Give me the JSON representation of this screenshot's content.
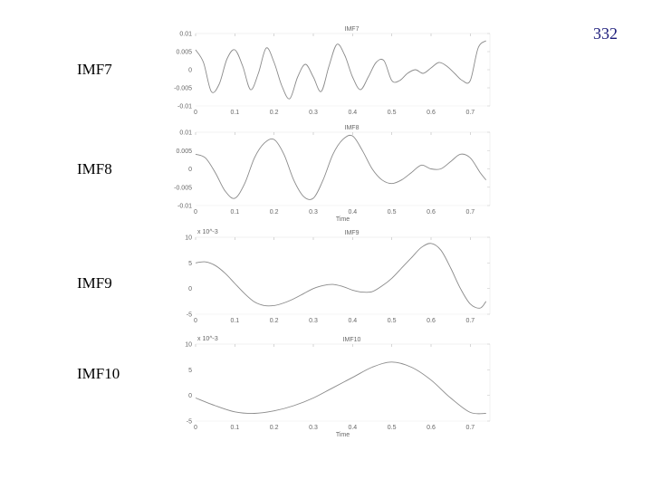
{
  "page_number": "332",
  "labels": [
    "IMF7",
    "IMF8",
    "IMF9",
    "IMF10"
  ],
  "chart_data": [
    {
      "type": "line",
      "title": "IMF7",
      "xlabel": "",
      "ylabel": "",
      "xlim": [
        0,
        0.75
      ],
      "ylim": [
        -0.01,
        0.01
      ],
      "xticks": [
        "0",
        "0.1",
        "0.2",
        "0.3",
        "0.4",
        "0.5",
        "0.6",
        "0.7"
      ],
      "yticks": [
        {
          "v": 0.01,
          "t": "0.01"
        },
        {
          "v": 0.005,
          "t": "0.005"
        },
        {
          "v": 0,
          "t": "0"
        },
        {
          "v": -0.005,
          "t": "-0.005"
        },
        {
          "v": -0.01,
          "t": "-0.01"
        }
      ],
      "series": [
        {
          "x": [
            0.0,
            0.02,
            0.04,
            0.06,
            0.08,
            0.1,
            0.12,
            0.14,
            0.16,
            0.18,
            0.2,
            0.22,
            0.24,
            0.26,
            0.28,
            0.3,
            0.32,
            0.34,
            0.36,
            0.38,
            0.4,
            0.42,
            0.44,
            0.46,
            0.48,
            0.5,
            0.52,
            0.54,
            0.56,
            0.58,
            0.6,
            0.62,
            0.64,
            0.66,
            0.68,
            0.7,
            0.72,
            0.74
          ],
          "y": [
            0.0055,
            0.002,
            -0.006,
            -0.004,
            0.003,
            0.0055,
            0.001,
            -0.0055,
            -0.001,
            0.006,
            0.002,
            -0.0045,
            -0.008,
            -0.002,
            0.0015,
            -0.002,
            -0.006,
            0.001,
            0.007,
            0.004,
            -0.002,
            -0.0055,
            -0.002,
            0.002,
            0.0025,
            -0.003,
            -0.003,
            -0.001,
            0.0,
            -0.001,
            0.0005,
            0.002,
            0.001,
            -0.001,
            -0.003,
            -0.003,
            0.006,
            0.008
          ]
        }
      ]
    },
    {
      "type": "line",
      "title": "IMF8",
      "xlabel": "Time",
      "ylabel": "",
      "xlim": [
        0,
        0.75
      ],
      "ylim": [
        -0.01,
        0.01
      ],
      "xticks": [
        "0",
        "0.1",
        "0.2",
        "0.3",
        "0.4",
        "0.5",
        "0.6",
        "0.7"
      ],
      "yticks": [
        {
          "v": 0.01,
          "t": "0.01"
        },
        {
          "v": 0.005,
          "t": "0.005"
        },
        {
          "v": 0,
          "t": "0"
        },
        {
          "v": -0.005,
          "t": "-0.005"
        },
        {
          "v": -0.01,
          "t": "-0.01"
        }
      ],
      "series": [
        {
          "x": [
            0.0,
            0.025,
            0.05,
            0.075,
            0.1,
            0.125,
            0.15,
            0.175,
            0.2,
            0.225,
            0.25,
            0.275,
            0.3,
            0.325,
            0.35,
            0.375,
            0.4,
            0.425,
            0.45,
            0.475,
            0.5,
            0.525,
            0.55,
            0.575,
            0.6,
            0.625,
            0.65,
            0.675,
            0.7,
            0.725,
            0.74
          ],
          "y": [
            0.004,
            0.003,
            -0.001,
            -0.006,
            -0.008,
            -0.004,
            0.003,
            0.007,
            0.008,
            0.004,
            -0.003,
            -0.0075,
            -0.008,
            -0.003,
            0.004,
            0.008,
            0.009,
            0.005,
            0.0,
            -0.003,
            -0.004,
            -0.003,
            -0.001,
            0.001,
            0.0,
            0.0,
            0.002,
            0.004,
            0.003,
            -0.001,
            -0.003
          ]
        }
      ]
    },
    {
      "type": "line",
      "title": "IMF9",
      "xlabel": "",
      "ylabel": "",
      "multiplier": "x 10^-3",
      "xlim": [
        0,
        0.75
      ],
      "ylim": [
        -5,
        10
      ],
      "xticks": [
        "0",
        "0.1",
        "0.2",
        "0.3",
        "0.4",
        "0.5",
        "0.6",
        "0.7"
      ],
      "yticks": [
        {
          "v": 10,
          "t": "10"
        },
        {
          "v": 5,
          "t": "5"
        },
        {
          "v": 0,
          "t": "0"
        },
        {
          "v": -5,
          "t": "-5"
        }
      ],
      "series": [
        {
          "x": [
            0.0,
            0.025,
            0.05,
            0.075,
            0.1,
            0.125,
            0.15,
            0.175,
            0.2,
            0.225,
            0.25,
            0.275,
            0.3,
            0.325,
            0.35,
            0.375,
            0.4,
            0.425,
            0.45,
            0.475,
            0.5,
            0.525,
            0.55,
            0.575,
            0.6,
            0.625,
            0.65,
            0.675,
            0.7,
            0.725,
            0.74
          ],
          "y": [
            5,
            5.2,
            4.5,
            3,
            1,
            -1,
            -2.6,
            -3.3,
            -3.3,
            -2.8,
            -2,
            -1,
            0,
            0.6,
            0.8,
            0.4,
            -0.3,
            -0.7,
            -0.6,
            0.5,
            2,
            4,
            6,
            8,
            8.8,
            7.5,
            4,
            0,
            -3,
            -3.8,
            -2.5
          ]
        }
      ]
    },
    {
      "type": "line",
      "title": "IMF10",
      "xlabel": "Time",
      "ylabel": "",
      "multiplier": "x 10^-3",
      "xlim": [
        0,
        0.75
      ],
      "ylim": [
        -5,
        10
      ],
      "xticks": [
        "0",
        "0.1",
        "0.2",
        "0.3",
        "0.4",
        "0.5",
        "0.6",
        "0.7"
      ],
      "yticks": [
        {
          "v": 10,
          "t": "10"
        },
        {
          "v": 5,
          "t": "5"
        },
        {
          "v": 0,
          "t": "0"
        },
        {
          "v": -5,
          "t": "-5"
        }
      ],
      "series": [
        {
          "x": [
            0.0,
            0.05,
            0.1,
            0.15,
            0.2,
            0.25,
            0.3,
            0.35,
            0.4,
            0.45,
            0.5,
            0.55,
            0.6,
            0.65,
            0.7,
            0.74
          ],
          "y": [
            -0.5,
            -2,
            -3.2,
            -3.5,
            -3,
            -2,
            -0.5,
            1.5,
            3.5,
            5.5,
            6.5,
            5.5,
            3,
            -0.5,
            -3.3,
            -3.5
          ]
        }
      ]
    }
  ]
}
